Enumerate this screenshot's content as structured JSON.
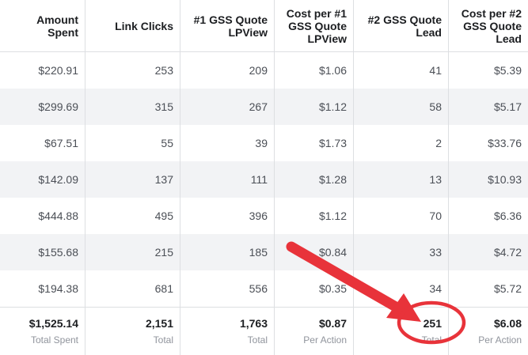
{
  "headers": [
    "Amount Spent",
    "Link Clicks",
    "#1 GSS Quote LPView",
    "Cost per #1 GSS Quote LPView",
    "#2 GSS Quote Lead",
    "Cost per #2 GSS Quote Lead"
  ],
  "rows": [
    [
      "$220.91",
      "253",
      "209",
      "$1.06",
      "41",
      "$5.39"
    ],
    [
      "$299.69",
      "315",
      "267",
      "$1.12",
      "58",
      "$5.17"
    ],
    [
      "$67.51",
      "55",
      "39",
      "$1.73",
      "2",
      "$33.76"
    ],
    [
      "$142.09",
      "137",
      "111",
      "$1.28",
      "13",
      "$10.93"
    ],
    [
      "$444.88",
      "495",
      "396",
      "$1.12",
      "70",
      "$6.36"
    ],
    [
      "$155.68",
      "215",
      "185",
      "$0.84",
      "33",
      "$4.72"
    ],
    [
      "$194.38",
      "681",
      "556",
      "$0.35",
      "34",
      "$5.72"
    ]
  ],
  "totals": [
    {
      "value": "$1,525.14",
      "label": "Total Spent"
    },
    {
      "value": "2,151",
      "label": "Total"
    },
    {
      "value": "1,763",
      "label": "Total"
    },
    {
      "value": "$0.87",
      "label": "Per Action"
    },
    {
      "value": "251",
      "label": "Total"
    },
    {
      "value": "$6.08",
      "label": "Per Action"
    }
  ],
  "annotation": {
    "arrow_color": "#e8333a",
    "circle_color": "#e8333a",
    "highlighted_column": 4
  }
}
